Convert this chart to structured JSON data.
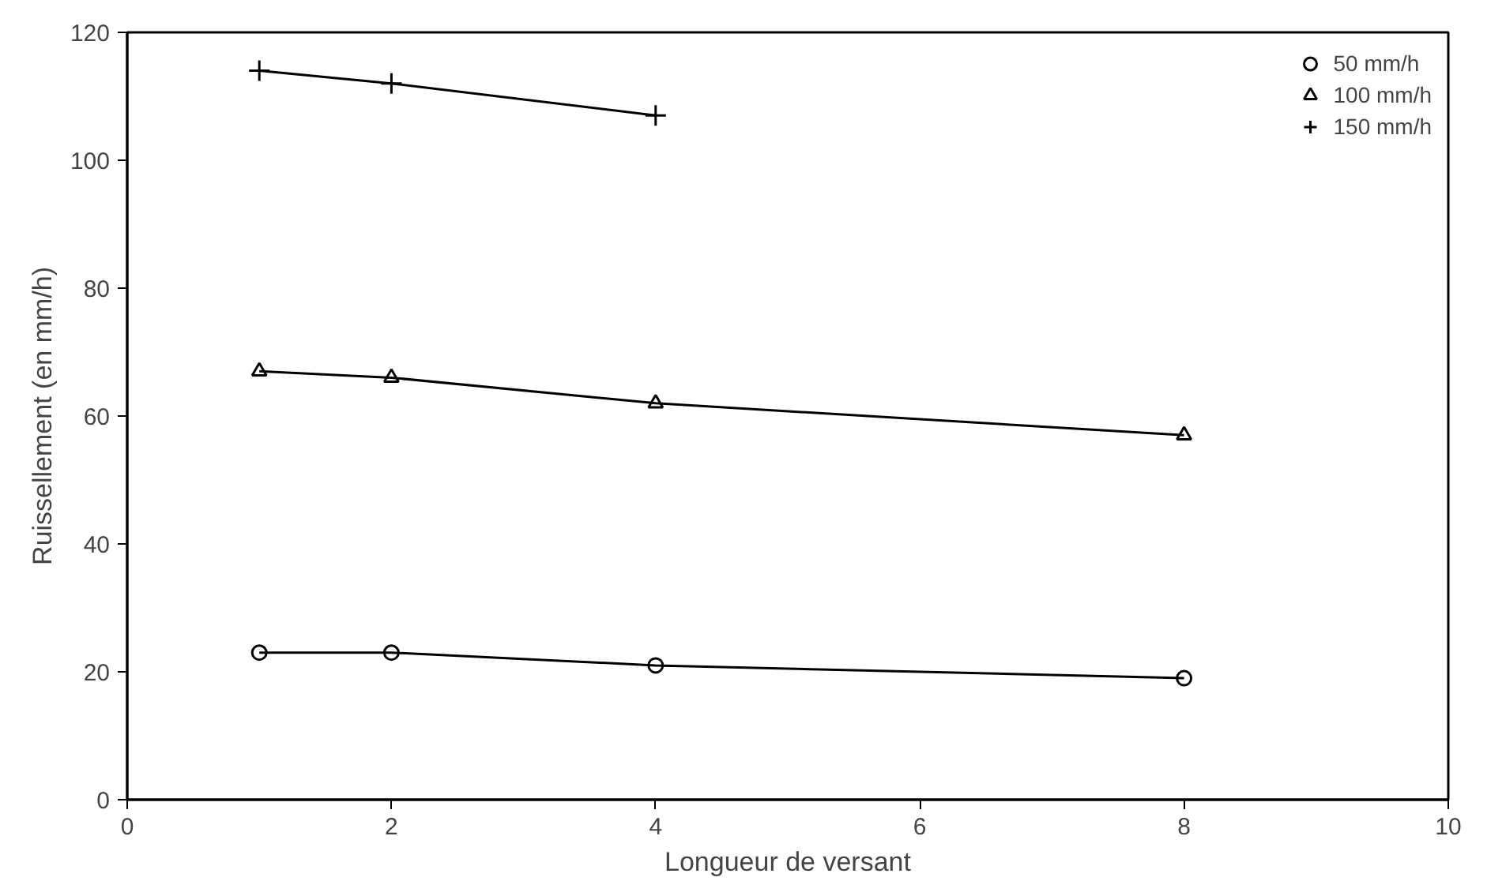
{
  "chart_data": {
    "type": "line",
    "xlabel": "Longueur de versant",
    "ylabel": "Ruissellement (en mm/h)",
    "x": [
      1,
      2,
      4,
      8
    ],
    "series": [
      {
        "name": "50 mm/h",
        "color": "#000000",
        "marker": "circle",
        "values": [
          23,
          23,
          21,
          19
        ]
      },
      {
        "name": "100 mm/h",
        "color": "#000000",
        "marker": "triangle",
        "values": [
          67,
          66,
          62,
          57
        ]
      },
      {
        "name": "150 mm/h",
        "color": "#000000",
        "marker": "cross",
        "values": [
          114,
          112,
          107,
          null
        ]
      }
    ],
    "xlim": [
      0,
      10
    ],
    "xticks": [
      0,
      2,
      4,
      6,
      8,
      10
    ],
    "ylim": [
      0,
      120
    ],
    "yticks": [
      0,
      20,
      40,
      60,
      80,
      100,
      120
    ],
    "grid": false,
    "legend": "top right",
    "line_style": "solid"
  }
}
